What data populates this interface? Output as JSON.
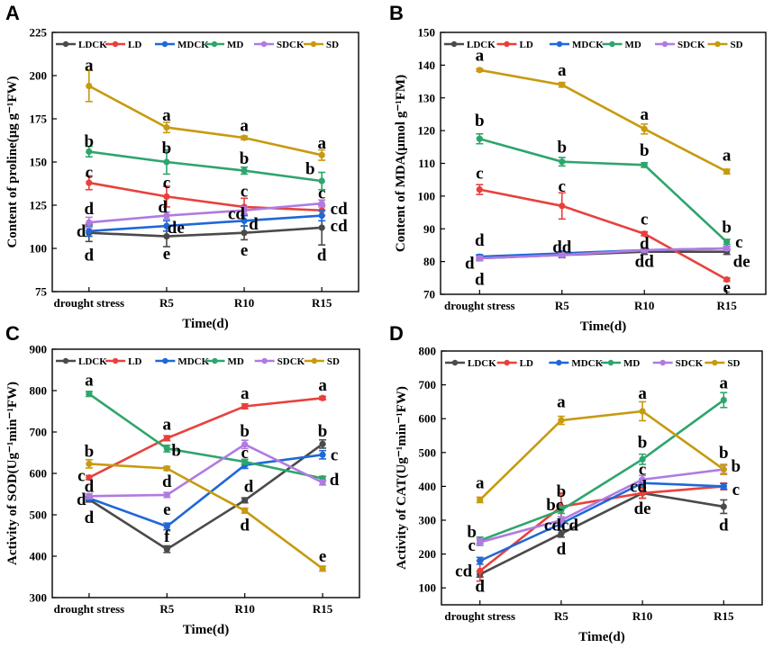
{
  "figure": {
    "colors": {
      "LDCK": "#4a4a4a",
      "LD": "#e8413c",
      "MDCK": "#1f68d6",
      "MD": "#2ea56c",
      "SDCK": "#b07be0",
      "SD": "#c79a10"
    }
  },
  "chart_data": [
    {
      "panel": "A",
      "type": "line",
      "title": "",
      "xlabel": "Time(d)",
      "ylabel": "Content of proline(μg g⁻¹FW)",
      "ylim": [
        75,
        225
      ],
      "yticks": [
        75,
        100,
        125,
        150,
        175,
        200,
        225
      ],
      "categories": [
        "drought stress",
        "R5",
        "R10",
        "R15"
      ],
      "series": [
        {
          "name": "LDCK",
          "values": [
            109,
            107,
            109,
            112
          ],
          "errors": [
            5,
            6,
            4,
            10
          ]
        },
        {
          "name": "LD",
          "values": [
            138,
            130,
            124,
            122
          ],
          "errors": [
            4,
            6,
            5,
            3
          ]
        },
        {
          "name": "MDCK",
          "values": [
            110,
            113,
            116,
            119
          ],
          "errors": [
            3,
            3,
            3,
            3
          ]
        },
        {
          "name": "MD",
          "values": [
            156,
            150,
            145,
            139
          ],
          "errors": [
            3,
            7,
            2,
            5
          ]
        },
        {
          "name": "SDCK",
          "values": [
            115,
            119,
            122,
            126
          ],
          "errors": [
            3,
            2,
            2,
            2
          ]
        },
        {
          "name": "SD",
          "values": [
            194,
            170,
            164,
            154
          ],
          "errors": [
            9,
            3,
            1,
            3
          ]
        }
      ],
      "annotations": [
        {
          "text": "a",
          "x": 0,
          "y": 206
        },
        {
          "text": "b",
          "x": 0,
          "y": 162
        },
        {
          "text": "c",
          "x": 0,
          "y": 144
        },
        {
          "text": "d",
          "x": 0,
          "y": 123
        },
        {
          "text": "d",
          "x": -0.1,
          "y": 110
        },
        {
          "text": "d",
          "x": 0,
          "y": 96
        },
        {
          "text": "a",
          "x": 1,
          "y": 177
        },
        {
          "text": "b",
          "x": 1,
          "y": 158
        },
        {
          "text": "c",
          "x": 1,
          "y": 138
        },
        {
          "text": "d",
          "x": 0.95,
          "y": 124
        },
        {
          "text": "de",
          "x": 1.12,
          "y": 112
        },
        {
          "text": "e",
          "x": 1,
          "y": 97
        },
        {
          "text": "a",
          "x": 2,
          "y": 171
        },
        {
          "text": "b",
          "x": 2,
          "y": 152
        },
        {
          "text": "c",
          "x": 2,
          "y": 133
        },
        {
          "text": "cd",
          "x": 1.9,
          "y": 120
        },
        {
          "text": "d",
          "x": 2.12,
          "y": 114
        },
        {
          "text": "e",
          "x": 2,
          "y": 99
        },
        {
          "text": "a",
          "x": 3,
          "y": 161
        },
        {
          "text": "b",
          "x": 2.85,
          "y": 146
        },
        {
          "text": "c",
          "x": 3,
          "y": 132
        },
        {
          "text": "cd",
          "x": 3.22,
          "y": 123
        },
        {
          "text": "cd",
          "x": 3.22,
          "y": 113
        },
        {
          "text": "d",
          "x": 3,
          "y": 96
        }
      ]
    },
    {
      "panel": "B",
      "type": "line",
      "title": "",
      "xlabel": "Time(d)",
      "ylabel": "Content of MDA(μmol g⁻¹FM)",
      "ylim": [
        70,
        150
      ],
      "yticks": [
        70,
        80,
        90,
        100,
        110,
        120,
        130,
        140,
        150
      ],
      "categories": [
        "drought stress",
        "R5",
        "R10",
        "R15"
      ],
      "series": [
        {
          "name": "LDCK",
          "values": [
            81,
            82,
            83,
            83
          ],
          "errors": [
            0.7,
            0.8,
            0.8,
            0.8
          ]
        },
        {
          "name": "LD",
          "values": [
            102,
            97,
            88.5,
            74.5
          ],
          "errors": [
            1.5,
            4,
            0.6,
            0.5
          ]
        },
        {
          "name": "MDCK",
          "values": [
            81.5,
            82.5,
            83.5,
            84
          ],
          "errors": [
            0.6,
            0.6,
            0.6,
            0.6
          ]
        },
        {
          "name": "MD",
          "values": [
            117.5,
            110.5,
            109.5,
            86
          ],
          "errors": [
            1.5,
            1.3,
            0.7,
            0.8
          ]
        },
        {
          "name": "SDCK",
          "values": [
            81,
            82,
            83.5,
            84
          ],
          "errors": [
            0.6,
            0.6,
            0.6,
            0.6
          ]
        },
        {
          "name": "SD",
          "values": [
            138.5,
            134,
            120.5,
            107.5
          ],
          "errors": [
            0.4,
            0.7,
            1.5,
            0.7
          ]
        }
      ],
      "annotations": [
        {
          "text": "a",
          "x": 0,
          "y": 143
        },
        {
          "text": "b",
          "x": 0,
          "y": 123
        },
        {
          "text": "c",
          "x": 0,
          "y": 107
        },
        {
          "text": "d",
          "x": 0,
          "y": 86.5
        },
        {
          "text": "d",
          "x": -0.12,
          "y": 79.5
        },
        {
          "text": "d",
          "x": 0,
          "y": 74.5
        },
        {
          "text": "a",
          "x": 1,
          "y": 138.5
        },
        {
          "text": "b",
          "x": 1,
          "y": 115
        },
        {
          "text": "c",
          "x": 1,
          "y": 103
        },
        {
          "text": "dd",
          "x": 1,
          "y": 84.5
        },
        {
          "text": "a",
          "x": 2,
          "y": 125
        },
        {
          "text": "b",
          "x": 2,
          "y": 114
        },
        {
          "text": "c",
          "x": 2,
          "y": 93
        },
        {
          "text": "d",
          "x": 2,
          "y": 85.5
        },
        {
          "text": "dd",
          "x": 2,
          "y": 80
        },
        {
          "text": "a",
          "x": 3,
          "y": 112.5
        },
        {
          "text": "b",
          "x": 3,
          "y": 90.5
        },
        {
          "text": "c",
          "x": 3.15,
          "y": 86
        },
        {
          "text": "de",
          "x": 3.18,
          "y": 80
        },
        {
          "text": "e",
          "x": 3,
          "y": 72
        }
      ]
    },
    {
      "panel": "C",
      "type": "line",
      "title": "",
      "xlabel": "Time(d)",
      "ylabel": "Activity of SOD(Ug⁻¹min⁻¹FW)",
      "ylim": [
        300,
        900
      ],
      "yticks": [
        300,
        400,
        500,
        600,
        700,
        800,
        900
      ],
      "categories": [
        "drought stress",
        "R5",
        "R10",
        "R15"
      ],
      "series": [
        {
          "name": "LDCK",
          "values": [
            537,
            417,
            535,
            671
          ],
          "errors": [
            6,
            8,
            6,
            10
          ]
        },
        {
          "name": "LD",
          "values": [
            590,
            685,
            762,
            782
          ],
          "errors": [
            5,
            6,
            6,
            4
          ]
        },
        {
          "name": "MDCK",
          "values": [
            540,
            472,
            620,
            645
          ],
          "errors": [
            5,
            8,
            8,
            10
          ]
        },
        {
          "name": "MD",
          "values": [
            792,
            660,
            628,
            588
          ],
          "errors": [
            6,
            8,
            6,
            5
          ]
        },
        {
          "name": "SDCK",
          "values": [
            545,
            548,
            670,
            578
          ],
          "errors": [
            6,
            6,
            10,
            6
          ]
        },
        {
          "name": "SD",
          "values": [
            623,
            612,
            510,
            370
          ],
          "errors": [
            10,
            5,
            6,
            6
          ]
        }
      ],
      "annotations": [
        {
          "text": "a",
          "x": 0,
          "y": 825
        },
        {
          "text": "b",
          "x": 0,
          "y": 653
        },
        {
          "text": "c",
          "x": -0.1,
          "y": 595
        },
        {
          "text": "d",
          "x": 0,
          "y": 568
        },
        {
          "text": "d",
          "x": -0.1,
          "y": 537
        },
        {
          "text": "d",
          "x": 0,
          "y": 493
        },
        {
          "text": "a",
          "x": 1,
          "y": 718
        },
        {
          "text": "b",
          "x": 1.12,
          "y": 655
        },
        {
          "text": "d",
          "x": 1,
          "y": 580
        },
        {
          "text": "e",
          "x": 1,
          "y": 513
        },
        {
          "text": "f",
          "x": 1,
          "y": 448
        },
        {
          "text": "a",
          "x": 2,
          "y": 793
        },
        {
          "text": "b",
          "x": 2,
          "y": 702
        },
        {
          "text": "c",
          "x": 2,
          "y": 650
        },
        {
          "text": "d",
          "x": 2.05,
          "y": 568
        },
        {
          "text": "d",
          "x": 2,
          "y": 475
        },
        {
          "text": "a",
          "x": 3,
          "y": 813
        },
        {
          "text": "b",
          "x": 3,
          "y": 702
        },
        {
          "text": "c",
          "x": 3.15,
          "y": 645
        },
        {
          "text": "d",
          "x": 3.15,
          "y": 585
        },
        {
          "text": "e",
          "x": 3,
          "y": 400
        }
      ]
    },
    {
      "panel": "D",
      "type": "line",
      "title": "",
      "xlabel": "Time(d)",
      "ylabel": "Activity of CAT(Ug⁻¹min⁻¹FW)",
      "ylim": [
        50,
        800
      ],
      "yticks": [
        100,
        200,
        300,
        400,
        500,
        600,
        700,
        800
      ],
      "categories": [
        "drought stress",
        "R5",
        "R10",
        "R15"
      ],
      "series": [
        {
          "name": "LDCK",
          "values": [
            140,
            260,
            380,
            340
          ],
          "errors": [
            8,
            10,
            15,
            20
          ]
        },
        {
          "name": "LD",
          "values": [
            150,
            340,
            380,
            400
          ],
          "errors": [
            30,
            40,
            15,
            10
          ]
        },
        {
          "name": "MDCK",
          "values": [
            180,
            290,
            410,
            400
          ],
          "errors": [
            10,
            10,
            12,
            8
          ]
        },
        {
          "name": "MD",
          "values": [
            240,
            330,
            480,
            655
          ],
          "errors": [
            10,
            10,
            15,
            22
          ]
        },
        {
          "name": "SDCK",
          "values": [
            235,
            300,
            420,
            450
          ],
          "errors": [
            10,
            10,
            12,
            12
          ]
        },
        {
          "name": "SD",
          "values": [
            360,
            595,
            622,
            450
          ],
          "errors": [
            8,
            12,
            28,
            15
          ]
        }
      ],
      "annotations": [
        {
          "text": "a",
          "x": 0,
          "y": 410
        },
        {
          "text": "b",
          "x": -0.1,
          "y": 265
        },
        {
          "text": "c",
          "x": -0.1,
          "y": 225
        },
        {
          "text": "cd",
          "x": -0.2,
          "y": 150
        },
        {
          "text": "d",
          "x": 0,
          "y": 105
        },
        {
          "text": "a",
          "x": 1,
          "y": 650
        },
        {
          "text": "b",
          "x": 1,
          "y": 385
        },
        {
          "text": "bc",
          "x": 0.92,
          "y": 345
        },
        {
          "text": "cdcd",
          "x": 1,
          "y": 285
        },
        {
          "text": "d",
          "x": 1,
          "y": 215
        },
        {
          "text": "a",
          "x": 2,
          "y": 675
        },
        {
          "text": "b",
          "x": 2,
          "y": 530
        },
        {
          "text": "c",
          "x": 2,
          "y": 450
        },
        {
          "text": "cd",
          "x": 1.95,
          "y": 400
        },
        {
          "text": "de",
          "x": 2,
          "y": 335
        },
        {
          "text": "a",
          "x": 3,
          "y": 705
        },
        {
          "text": "b",
          "x": 3,
          "y": 500
        },
        {
          "text": "b",
          "x": 3.15,
          "y": 460
        },
        {
          "text": "c",
          "x": 3.15,
          "y": 390
        },
        {
          "text": "d",
          "x": 3,
          "y": 285
        }
      ]
    }
  ]
}
